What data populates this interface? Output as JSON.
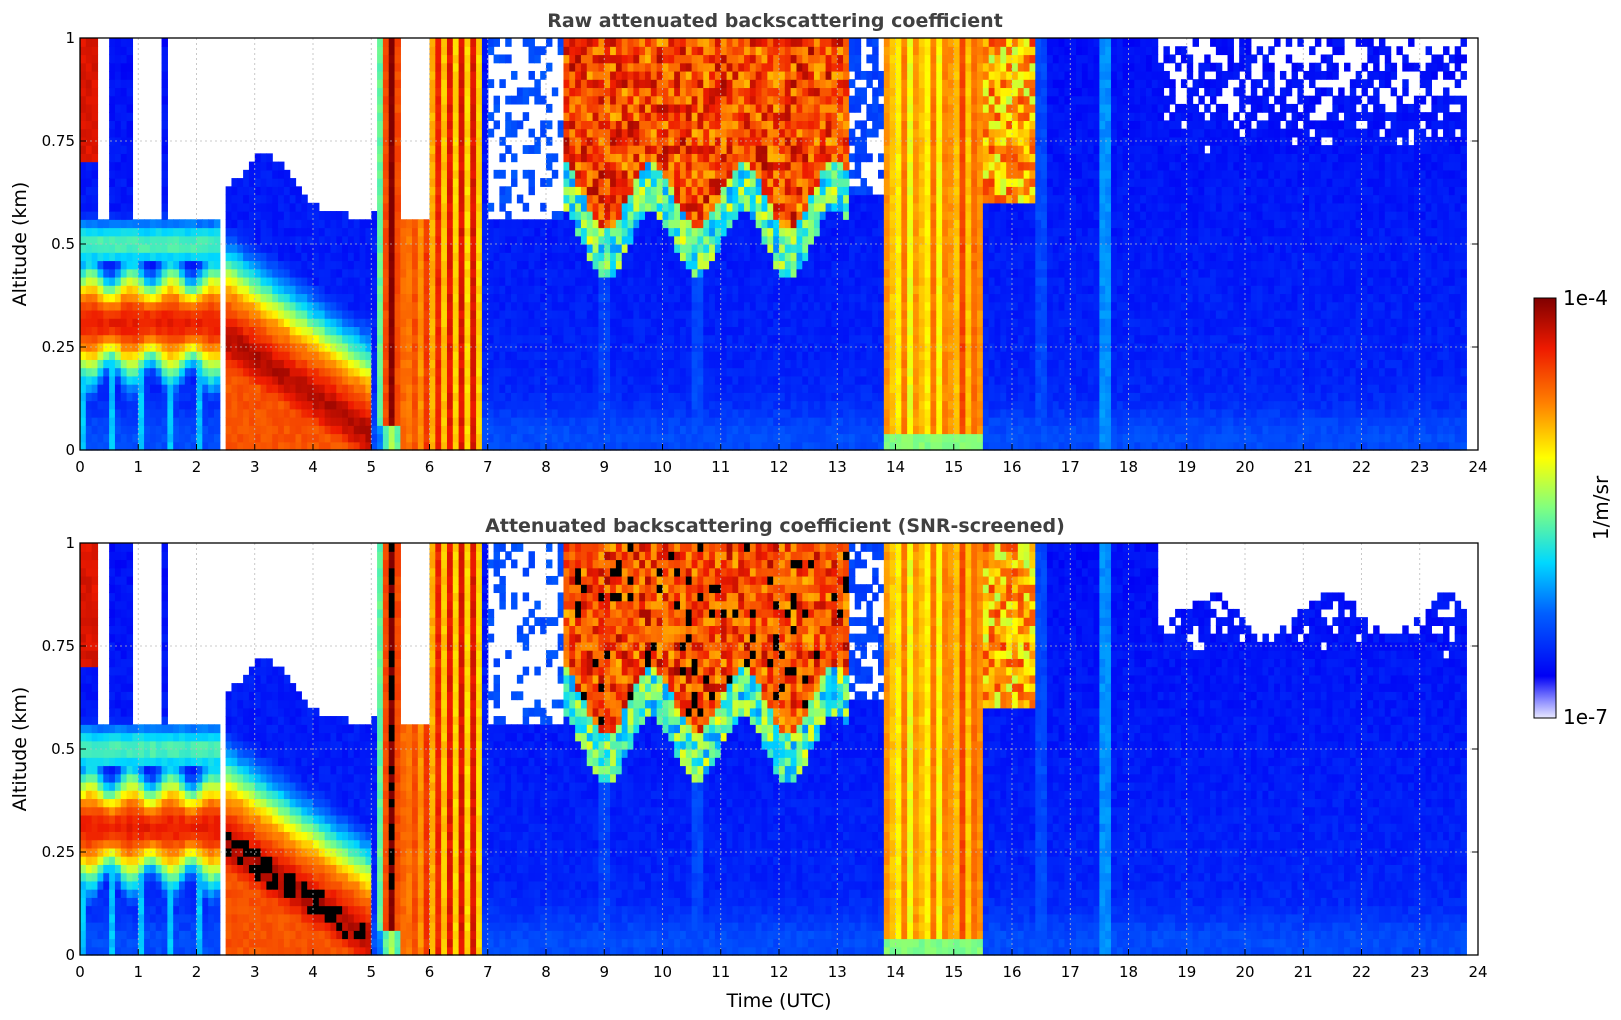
{
  "chart_data": [
    {
      "type": "heatmap",
      "title": "Raw attenuated backscattering coefficient",
      "xlabel": "",
      "ylabel": "Altitude (km)",
      "xlim": [
        0,
        24
      ],
      "ylim": [
        0,
        1
      ],
      "xticks": [
        0,
        1,
        2,
        3,
        4,
        5,
        6,
        7,
        8,
        9,
        10,
        11,
        12,
        13,
        14,
        15,
        16,
        17,
        18,
        19,
        20,
        21,
        22,
        23,
        24
      ],
      "xtick_labels": [
        "0",
        "1",
        "2",
        "3",
        "4",
        "5",
        "6",
        "7",
        "8",
        "9",
        "10",
        "11",
        "12",
        "13",
        "14",
        "15",
        "16",
        "17",
        "18",
        "19",
        "20",
        "21",
        "22",
        "23",
        "24"
      ],
      "yticks": [
        0,
        0.25,
        0.5,
        0.75,
        1
      ],
      "ytick_labels": [
        "0",
        "0.25",
        "0.5",
        "0.75",
        "1"
      ],
      "grid": true,
      "data_end_hour": 23.8,
      "features": [
        {
          "name": "low aerosol layer",
          "t_start": 0,
          "t_end": 2.45,
          "alt_center": 0.3,
          "level": 0.9
        },
        {
          "name": "descending aerosol layer",
          "t_start": 2.55,
          "t_end": 5.0,
          "alt_from": 0.28,
          "alt_to": 0.05,
          "level": 0.95
        },
        {
          "name": "dense cloud/fog",
          "t_start": 5.2,
          "t_end": 6.9,
          "alt_top": 1.0,
          "level": 0.9
        },
        {
          "name": "upper cloud",
          "t_start": 8.4,
          "t_end": 13.2,
          "alt_bottom": 0.6,
          "level": 0.88
        },
        {
          "name": "precipitation column",
          "t_start": 13.8,
          "t_end": 15.5,
          "alt_top": 1.0,
          "level": 0.72
        },
        {
          "name": "background boundary layer",
          "t_start": 7.0,
          "t_end": 23.8,
          "alt_top": 0.55,
          "level": 0.15
        }
      ]
    },
    {
      "type": "heatmap",
      "title": "Attenuated backscattering coefficient (SNR-screened)",
      "xlabel": "Time (UTC)",
      "ylabel": "Altitude (km)",
      "xlim": [
        0,
        24
      ],
      "ylim": [
        0,
        1
      ],
      "xticks": [
        0,
        1,
        2,
        3,
        4,
        5,
        6,
        7,
        8,
        9,
        10,
        11,
        12,
        13,
        14,
        15,
        16,
        17,
        18,
        19,
        20,
        21,
        22,
        23,
        24
      ],
      "xtick_labels": [
        "0",
        "1",
        "2",
        "3",
        "4",
        "5",
        "6",
        "7",
        "8",
        "9",
        "10",
        "11",
        "12",
        "13",
        "14",
        "15",
        "16",
        "17",
        "18",
        "19",
        "20",
        "21",
        "22",
        "23",
        "24"
      ],
      "yticks": [
        0,
        0.25,
        0.5,
        0.75,
        1
      ],
      "ytick_labels": [
        "0",
        "0.25",
        "0.5",
        "0.75",
        "1"
      ],
      "grid": true,
      "data_end_hour": 23.8,
      "screened": true,
      "saturated_color": "#000000"
    }
  ],
  "colorbar": {
    "label": "1/m/sr",
    "max_label": "1e-4",
    "min_label": "1e-7",
    "scale": "log",
    "colormap": "jet",
    "range": [
      1e-07,
      0.0001
    ]
  },
  "colors": {
    "title": "#404040",
    "grid": "#bbbbbb"
  }
}
